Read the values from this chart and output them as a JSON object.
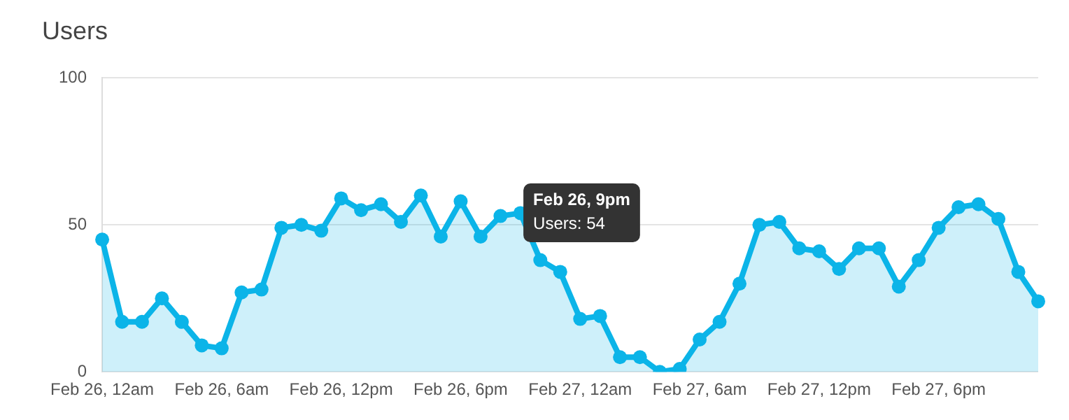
{
  "chart_data": {
    "type": "area",
    "title": "Users",
    "categories": [
      "Feb 26, 12am",
      null,
      null,
      null,
      null,
      null,
      "Feb 26, 6am",
      null,
      null,
      null,
      null,
      null,
      "Feb 26, 12pm",
      null,
      null,
      null,
      null,
      null,
      "Feb 26, 6pm",
      null,
      null,
      null,
      null,
      null,
      "Feb 27, 12am",
      null,
      null,
      null,
      null,
      null,
      "Feb 27, 6am",
      null,
      null,
      null,
      null,
      null,
      "Feb 27, 12pm",
      null,
      null,
      null,
      null,
      null,
      "Feb 27, 6pm",
      null,
      null,
      null,
      null,
      null
    ],
    "values": [
      45,
      17,
      17,
      25,
      17,
      9,
      8,
      27,
      28,
      49,
      50,
      48,
      59,
      55,
      57,
      51,
      60,
      46,
      58,
      46,
      53,
      54,
      38,
      34,
      18,
      19,
      5,
      5,
      0,
      1,
      11,
      17,
      30,
      50,
      51,
      42,
      41,
      35,
      42,
      42,
      29,
      38,
      49,
      56,
      57,
      52,
      34,
      24
    ],
    "color": "#0bb4e8",
    "ylim": [
      0,
      100
    ],
    "yticks": [
      0,
      50,
      100
    ],
    "grid": "y",
    "marker": "circle",
    "legend": false,
    "annotations": [
      "Feb 26, 9pm\nUsers: 54"
    ]
  }
}
